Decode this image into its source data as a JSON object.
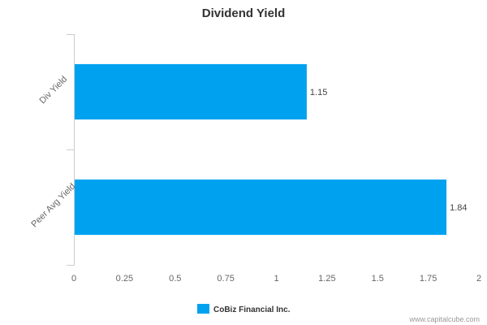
{
  "chart_data": {
    "type": "bar",
    "orientation": "horizontal",
    "title": "Dividend Yield",
    "categories": [
      "Div Yield",
      "Peer Avg Yield"
    ],
    "series": [
      {
        "name": "CoBiz Financial Inc.",
        "values": [
          1.15,
          1.84
        ],
        "color": "#00a2f0"
      }
    ],
    "data_labels": [
      "1.15",
      "1.84"
    ],
    "xlim": [
      0,
      2
    ],
    "xticks": [
      0,
      0.25,
      0.5,
      0.75,
      1,
      1.25,
      1.5,
      1.75,
      2
    ],
    "xtick_labels": [
      "0",
      "0.25",
      "0.5",
      "0.75",
      "1",
      "1.25",
      "1.5",
      "1.75",
      "2"
    ],
    "grid": false,
    "legend_position": "bottom-center"
  },
  "credit": "www.capitalcube.com"
}
